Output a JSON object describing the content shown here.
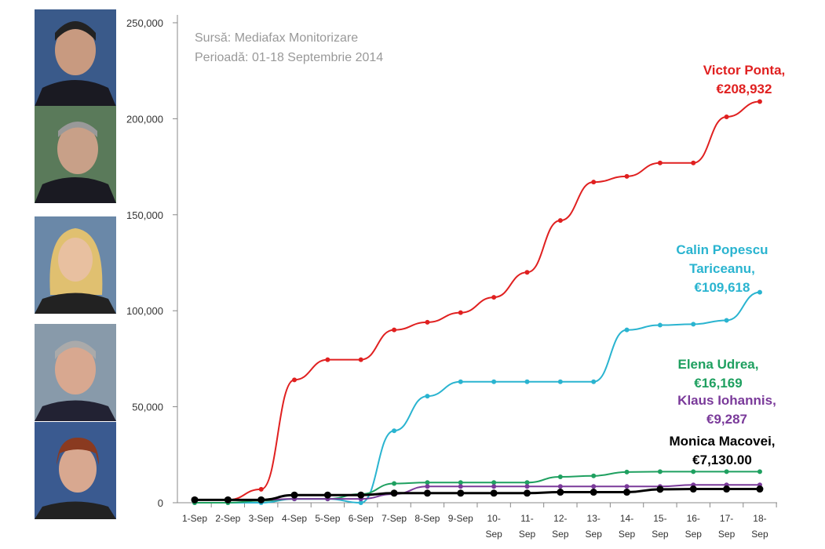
{
  "chart_data": {
    "type": "line",
    "title": "",
    "source_lines": [
      "Sursă: Mediafax Monitorizare",
      "Perioadă: 01-18 Septembrie 2014"
    ],
    "xlabel": "",
    "ylabel": "",
    "ylim": [
      0,
      250000
    ],
    "yticks": [
      "0",
      "50,000",
      "100,000",
      "150,000",
      "200,000",
      "250,000"
    ],
    "categories": [
      "1-Sep",
      "2-Sep",
      "3-Sep",
      "4-Sep",
      "5-Sep",
      "6-Sep",
      "7-Sep",
      "8-Sep",
      "9-Sep",
      "10-Sep",
      "11-Sep",
      "12-Sep",
      "13-Sep",
      "14-Sep",
      "15-Sep",
      "16-Sep",
      "17-Sep",
      "18-Sep"
    ],
    "series": [
      {
        "name": "Victor Ponta",
        "label": [
          "Victor Ponta,",
          "€208,932"
        ],
        "color": "#e02020",
        "values": [
          1500,
          1500,
          7000,
          64000,
          74500,
          74500,
          90000,
          94000,
          99000,
          107000,
          120000,
          147000,
          167000,
          170000,
          177000,
          177000,
          201000,
          208932
        ]
      },
      {
        "name": "Calin Popescu Tariceanu",
        "label": [
          "Calin Popescu",
          "Tariceanu,",
          "€109,618"
        ],
        "color": "#2ab4d0",
        "values": [
          0,
          0,
          0,
          2000,
          2000,
          0,
          37500,
          55500,
          63000,
          63000,
          63000,
          63000,
          63000,
          90000,
          92500,
          93000,
          95000,
          109618
        ]
      },
      {
        "name": "Elena Udrea",
        "label": [
          "Elena Udrea,",
          "€16,169"
        ],
        "color": "#1fa060",
        "values": [
          0,
          0,
          1000,
          2000,
          2000,
          4500,
          10000,
          10500,
          10500,
          10500,
          10500,
          13500,
          14000,
          16000,
          16169,
          16169,
          16169,
          16169
        ]
      },
      {
        "name": "Klaus Iohannis",
        "label": [
          "Klaus Iohannis,",
          "€9,287"
        ],
        "color": "#7a3a9a",
        "values": [
          1500,
          1500,
          1500,
          2000,
          2000,
          2000,
          4500,
          8500,
          8500,
          8500,
          8500,
          8500,
          8500,
          8500,
          8500,
          9287,
          9287,
          9287
        ]
      },
      {
        "name": "Monica Macovei",
        "label": [
          "Monica Macovei,",
          "€7,130.00"
        ],
        "color": "#000000",
        "values": [
          1500,
          1500,
          1500,
          4000,
          4000,
          4000,
          5000,
          5000,
          5000,
          5000,
          5000,
          5500,
          5500,
          5500,
          7000,
          7130,
          7130,
          7130
        ]
      }
    ]
  }
}
